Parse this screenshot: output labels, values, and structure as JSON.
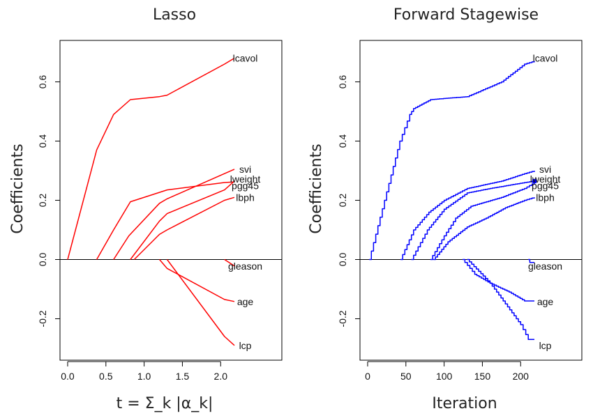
{
  "chart_data": [
    {
      "type": "line",
      "title": "Lasso",
      "xlabel": "t = Σ_k |α_k|",
      "ylabel": "Coefficients",
      "xlim": [
        -0.1,
        2.8
      ],
      "ylim": [
        -0.34,
        0.74
      ],
      "xticks": [
        "0.0",
        "0.5",
        "1.0",
        "1.5",
        "2.0"
      ],
      "xtick_values": [
        0,
        0.5,
        1.0,
        1.5,
        2.0
      ],
      "yticks": [
        "-0.2",
        "0.0",
        "0.2",
        "0.4",
        "0.6"
      ],
      "ytick_values": [
        -0.2,
        0,
        0.2,
        0.4,
        0.6
      ],
      "color": "#ff0000",
      "zero_line": true,
      "series": [
        {
          "name": "lcavol",
          "points": [
            [
              0,
              0
            ],
            [
              0.38,
              0.37
            ],
            [
              0.6,
              0.49
            ],
            [
              0.82,
              0.54
            ],
            [
              1.2,
              0.55
            ],
            [
              1.3,
              0.555
            ],
            [
              2.05,
              0.66
            ],
            [
              2.18,
              0.68
            ]
          ]
        },
        {
          "name": "svi",
          "points": [
            [
              0.6,
              0
            ],
            [
              0.8,
              0.08
            ],
            [
              1.2,
              0.19
            ],
            [
              1.3,
              0.205
            ],
            [
              2.05,
              0.29
            ],
            [
              2.18,
              0.305
            ]
          ]
        },
        {
          "name": "lweight",
          "points": [
            [
              0.38,
              0
            ],
            [
              0.6,
              0.1
            ],
            [
              0.82,
              0.195
            ],
            [
              1.3,
              0.235
            ],
            [
              2.05,
              0.26
            ],
            [
              2.18,
              0.262
            ]
          ]
        },
        {
          "name": "pgg45",
          "points": [
            [
              0.82,
              0
            ],
            [
              1.2,
              0.13
            ],
            [
              1.3,
              0.155
            ],
            [
              2.05,
              0.235
            ],
            [
              2.18,
              0.265
            ]
          ]
        },
        {
          "name": "lbph",
          "points": [
            [
              0.87,
              0
            ],
            [
              1.2,
              0.085
            ],
            [
              1.3,
              0.1
            ],
            [
              2.05,
              0.2
            ],
            [
              2.18,
              0.21
            ]
          ]
        },
        {
          "name": "gleason",
          "points": [
            [
              2.05,
              0
            ],
            [
              2.18,
              -0.022
            ]
          ]
        },
        {
          "name": "age",
          "points": [
            [
              1.2,
              0
            ],
            [
              1.3,
              -0.03
            ],
            [
              2.05,
              -0.135
            ],
            [
              2.18,
              -0.142
            ]
          ]
        },
        {
          "name": "lcp",
          "points": [
            [
              1.3,
              0
            ],
            [
              2.05,
              -0.26
            ],
            [
              2.18,
              -0.29
            ]
          ]
        }
      ],
      "labels": [
        {
          "name": "lcavol",
          "text": "lcavol",
          "y": 0.68
        },
        {
          "name": "svi",
          "text": "svi",
          "y": 0.305
        },
        {
          "name": "lweight",
          "text": "lweight",
          "y": 0.272
        },
        {
          "name": "pgg45",
          "text": "pgg45",
          "y": 0.25
        },
        {
          "name": "lbph",
          "text": "lbph",
          "y": 0.21
        },
        {
          "name": "gleason",
          "text": "gleason",
          "y": -0.022
        },
        {
          "name": "age",
          "text": "age",
          "y": -0.142
        },
        {
          "name": "lcp",
          "text": "lcp",
          "y": -0.29
        }
      ]
    },
    {
      "type": "line",
      "title": "Forward Stagewise",
      "xlabel": "Iteration",
      "ylabel": "Coefficients",
      "xlim": [
        -10,
        280
      ],
      "ylim": [
        -0.34,
        0.74
      ],
      "xticks": [
        "0",
        "50",
        "100",
        "150",
        "200"
      ],
      "xtick_values": [
        0,
        50,
        100,
        150,
        200
      ],
      "yticks": [
        "-0.2",
        "0.0",
        "0.2",
        "0.4",
        "0.6"
      ],
      "ytick_values": [
        -0.2,
        0,
        0.2,
        0.4,
        0.6
      ],
      "color": "#0000ff",
      "zero_line": true,
      "stepped": true,
      "series": [
        {
          "name": "lcavol",
          "points": [
            [
              2,
              0
            ],
            [
              42,
              0.4
            ],
            [
              55,
              0.49
            ],
            [
              60,
              0.51
            ],
            [
              82,
              0.54
            ],
            [
              105,
              0.545
            ],
            [
              130,
              0.55
            ],
            [
              175,
              0.6
            ],
            [
              205,
              0.66
            ],
            [
              218,
              0.67
            ]
          ]
        },
        {
          "name": "svi",
          "points": [
            [
              43,
              0
            ],
            [
              60,
              0.1
            ],
            [
              80,
              0.16
            ],
            [
              100,
              0.2
            ],
            [
              130,
              0.24
            ],
            [
              175,
              0.265
            ],
            [
              205,
              0.29
            ],
            [
              218,
              0.3
            ]
          ]
        },
        {
          "name": "lweight",
          "points": [
            [
              57,
              0
            ],
            [
              78,
              0.1
            ],
            [
              100,
              0.17
            ],
            [
              130,
              0.225
            ],
            [
              160,
              0.24
            ],
            [
              205,
              0.26
            ],
            [
              218,
              0.265
            ]
          ]
        },
        {
          "name": "pgg45",
          "points": [
            [
              82,
              0
            ],
            [
              100,
              0.08
            ],
            [
              115,
              0.14
            ],
            [
              135,
              0.18
            ],
            [
              175,
              0.21
            ],
            [
              205,
              0.24
            ],
            [
              218,
              0.26
            ]
          ]
        },
        {
          "name": "lbph",
          "points": [
            [
              86,
              0
            ],
            [
              105,
              0.06
            ],
            [
              130,
              0.11
            ],
            [
              155,
              0.14
            ],
            [
              180,
              0.175
            ],
            [
              205,
              0.2
            ],
            [
              218,
              0.21
            ]
          ]
        },
        {
          "name": "gleason",
          "points": [
            [
              210,
              0
            ],
            [
              212,
              -0.01
            ],
            [
              218,
              -0.01
            ]
          ]
        },
        {
          "name": "age",
          "points": [
            [
              124,
              0
            ],
            [
              140,
              -0.05
            ],
            [
              160,
              -0.08
            ],
            [
              185,
              -0.11
            ],
            [
              205,
              -0.14
            ],
            [
              218,
              -0.14
            ]
          ]
        },
        {
          "name": "lcp",
          "points": [
            [
              130,
              0
            ],
            [
              160,
              -0.08
            ],
            [
              180,
              -0.15
            ],
            [
              200,
              -0.22
            ],
            [
              210,
              -0.27
            ],
            [
              218,
              -0.27
            ]
          ]
        }
      ],
      "labels": [
        {
          "name": "lcavol",
          "text": "lcavol",
          "y": 0.68
        },
        {
          "name": "svi",
          "text": "svi",
          "y": 0.305
        },
        {
          "name": "lweight",
          "text": "lweight",
          "y": 0.272
        },
        {
          "name": "pgg45",
          "text": "pgg45",
          "y": 0.25
        },
        {
          "name": "lbph",
          "text": "lbph",
          "y": 0.21
        },
        {
          "name": "gleason",
          "text": "gleason",
          "y": -0.022
        },
        {
          "name": "age",
          "text": "age",
          "y": -0.142
        },
        {
          "name": "lcp",
          "text": "lcp",
          "y": -0.29
        }
      ]
    }
  ]
}
